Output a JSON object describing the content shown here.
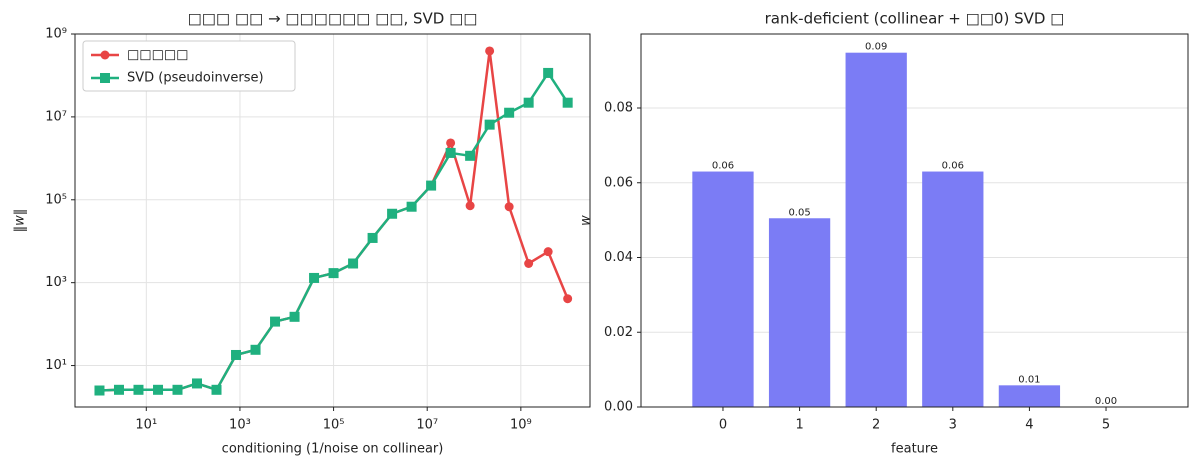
{
  "chart_data": [
    {
      "type": "line",
      "title": "□□□ □□ → □□□□□□ □□, SVD □□",
      "xlabel": "conditioning (1/noise on collinear)",
      "ylabel": "‖w‖",
      "xscale": "log",
      "yscale": "log",
      "grid": true,
      "legend": "upper left",
      "x": [
        1,
        2.61,
        6.81,
        17.8,
        46.4,
        121,
        316,
        825,
        2154,
        5623,
        14678,
        38312,
        100000,
        261016,
        681292,
        1778279,
        4641589,
        12115277,
        31622777,
        82540419,
        215443469,
        562341325,
        1467799268,
        3831186849,
        10000000000
      ],
      "series": [
        {
          "name": "□□□□□",
          "color": "#e84545",
          "marker": "circle",
          "values": [
            2.5,
            2.6,
            2.6,
            2.6,
            2.6,
            3.7,
            2.6,
            18,
            24,
            115,
            150,
            1300,
            1700,
            2900,
            12000,
            46000,
            68000,
            220000,
            2350000,
            72000,
            390000000,
            68000,
            2900,
            5600,
            410
          ]
        },
        {
          "name": "SVD (pseudoinverse)",
          "color": "#1fb07f",
          "marker": "square",
          "values": [
            2.5,
            2.6,
            2.6,
            2.6,
            2.6,
            3.7,
            2.6,
            18,
            24,
            115,
            150,
            1300,
            1700,
            2900,
            12000,
            46000,
            68000,
            220000,
            1350000,
            1150000,
            6500000,
            12600000,
            22000000,
            115000000,
            22000000
          ]
        }
      ],
      "xlim": [
        0.3,
        30000000000
      ],
      "xticks": [
        {
          "value": 10,
          "label": "10¹"
        },
        {
          "value": 1000,
          "label": "10³"
        },
        {
          "value": 100000,
          "label": "10⁵"
        },
        {
          "value": 10000000,
          "label": "10⁷"
        },
        {
          "value": 1000000000,
          "label": "10⁹"
        }
      ],
      "ylim": [
        1,
        1000000000
      ],
      "yticks": [
        {
          "value": 10,
          "label": "10¹"
        },
        {
          "value": 1000,
          "label": "10³"
        },
        {
          "value": 100000,
          "label": "10⁵"
        },
        {
          "value": 10000000,
          "label": "10⁷"
        },
        {
          "value": 1000000000,
          "label": "10⁹"
        }
      ]
    },
    {
      "type": "bar",
      "title": "rank-deficient (collinear + □□0) SVD □",
      "xlabel": "feature",
      "ylabel": "w",
      "grid": true,
      "color": "#7b7cf5",
      "categories": [
        "0",
        "1",
        "2",
        "3",
        "4",
        "5"
      ],
      "values": [
        0.063,
        0.0505,
        0.0948,
        0.063,
        0.0058,
        0
      ],
      "value_labels": [
        "0.06",
        "0.05",
        "0.09",
        "0.06",
        "0.01",
        "0.00"
      ],
      "ylim": [
        0,
        0.0998
      ],
      "yticks": [
        {
          "value": 0,
          "label": "0.00"
        },
        {
          "value": 0.02,
          "label": "0.02"
        },
        {
          "value": 0.04,
          "label": "0.04"
        },
        {
          "value": 0.06,
          "label": "0.06"
        },
        {
          "value": 0.08,
          "label": "0.08"
        }
      ]
    }
  ]
}
